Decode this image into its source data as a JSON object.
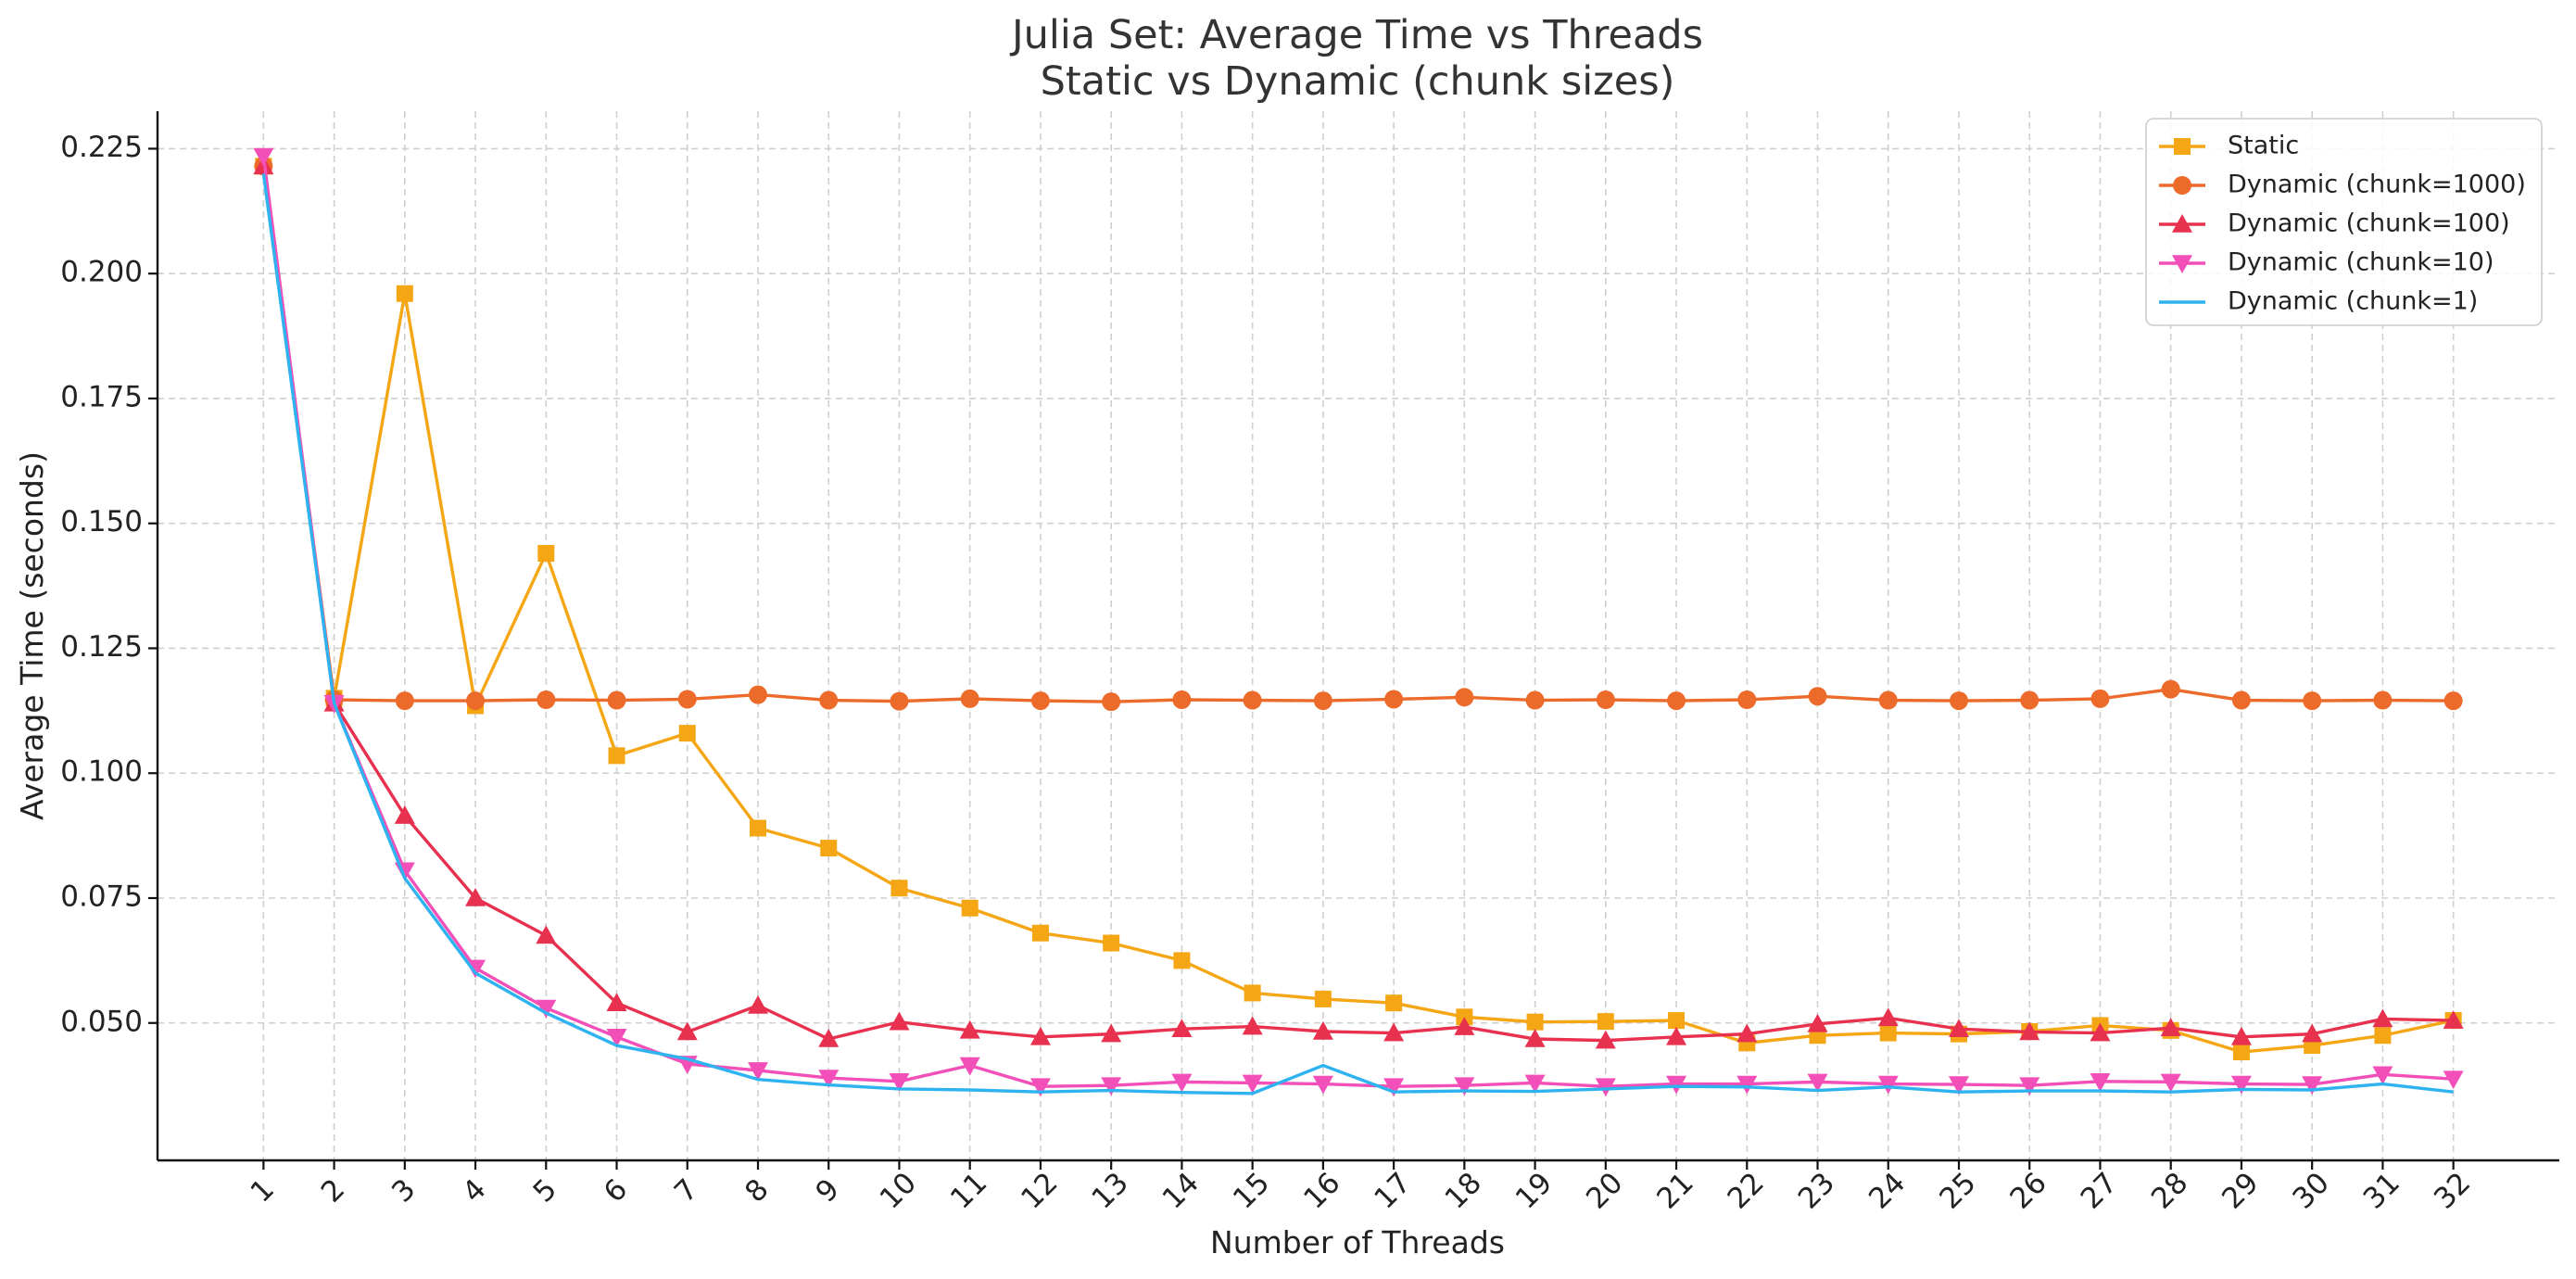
{
  "chart_data": {
    "type": "line",
    "title": "Julia Set: Average Time vs Threads",
    "subtitle": "Static vs Dynamic (chunk sizes)",
    "xlabel": "Number of Threads",
    "ylabel": "Average Time (seconds)",
    "x": [
      1,
      2,
      3,
      4,
      5,
      6,
      7,
      8,
      9,
      10,
      11,
      12,
      13,
      14,
      15,
      16,
      17,
      18,
      19,
      20,
      21,
      22,
      23,
      24,
      25,
      26,
      27,
      28,
      29,
      30,
      31,
      32
    ],
    "xlim": [
      -0.5,
      33.5
    ],
    "ylim": [
      0.0225,
      0.2325
    ],
    "yticks": [
      0.05,
      0.075,
      0.1,
      0.125,
      0.15,
      0.175,
      0.2,
      0.225
    ],
    "ytick_labels": [
      "0.050",
      "0.075",
      "0.100",
      "0.125",
      "0.150",
      "0.175",
      "0.200",
      "0.225"
    ],
    "grid": true,
    "legend_position": "top-right",
    "series": [
      {
        "name": "Static",
        "color": "#F5A614",
        "marker": "square",
        "values": [
          0.2215,
          0.115,
          0.196,
          0.1135,
          0.144,
          0.1035,
          0.108,
          0.089,
          0.085,
          0.077,
          0.073,
          0.068,
          0.066,
          0.0625,
          0.056,
          0.0548,
          0.054,
          0.0512,
          0.0502,
          0.0503,
          0.0505,
          0.046,
          0.0475,
          0.048,
          0.0478,
          0.0483,
          0.0495,
          0.0485,
          0.0442,
          0.0455,
          0.0475,
          0.0505
        ]
      },
      {
        "name": "Dynamic (chunk=1000)",
        "color": "#EC6A2A",
        "marker": "circle",
        "values": [
          0.2215,
          0.1147,
          0.1145,
          0.1145,
          0.1147,
          0.1146,
          0.1148,
          0.1157,
          0.1146,
          0.1144,
          0.1149,
          0.1145,
          0.1143,
          0.1147,
          0.1146,
          0.1145,
          0.1148,
          0.1152,
          0.1146,
          0.1147,
          0.1145,
          0.1147,
          0.1154,
          0.1146,
          0.1145,
          0.1146,
          0.1149,
          0.1168,
          0.1146,
          0.1145,
          0.1146,
          0.1145
        ]
      },
      {
        "name": "Dynamic (chunk=100)",
        "color": "#E8314F",
        "marker": "triangle-up",
        "values": [
          0.2215,
          0.114,
          0.0915,
          0.075,
          0.0675,
          0.054,
          0.0482,
          0.0535,
          0.0468,
          0.0502,
          0.0485,
          0.0472,
          0.0478,
          0.0488,
          0.0493,
          0.0483,
          0.048,
          0.0492,
          0.0468,
          0.0465,
          0.0472,
          0.0478,
          0.0498,
          0.051,
          0.0488,
          0.0482,
          0.048,
          0.049,
          0.0472,
          0.0478,
          0.0508,
          0.0505
        ]
      },
      {
        "name": "Dynamic (chunk=10)",
        "color": "#F24FB8",
        "marker": "triangle-down",
        "values": [
          0.2235,
          0.114,
          0.0805,
          0.061,
          0.053,
          0.0472,
          0.0418,
          0.0405,
          0.039,
          0.0383,
          0.0415,
          0.0373,
          0.0375,
          0.0382,
          0.038,
          0.0378,
          0.0373,
          0.0375,
          0.038,
          0.0373,
          0.0378,
          0.0378,
          0.0382,
          0.0378,
          0.0377,
          0.0375,
          0.0383,
          0.0382,
          0.0378,
          0.0377,
          0.0397,
          0.0388
        ]
      },
      {
        "name": "Dynamic (chunk=1)",
        "color": "#2EB3F0",
        "marker": "none",
        "values": [
          0.22,
          0.114,
          0.079,
          0.06,
          0.052,
          0.0455,
          0.0428,
          0.0387,
          0.0376,
          0.0368,
          0.0366,
          0.0362,
          0.0365,
          0.0361,
          0.0359,
          0.0415,
          0.0362,
          0.0364,
          0.0363,
          0.0368,
          0.0373,
          0.0372,
          0.0365,
          0.0372,
          0.0362,
          0.0364,
          0.0364,
          0.0362,
          0.0367,
          0.0366,
          0.0378,
          0.0362
        ]
      }
    ]
  }
}
